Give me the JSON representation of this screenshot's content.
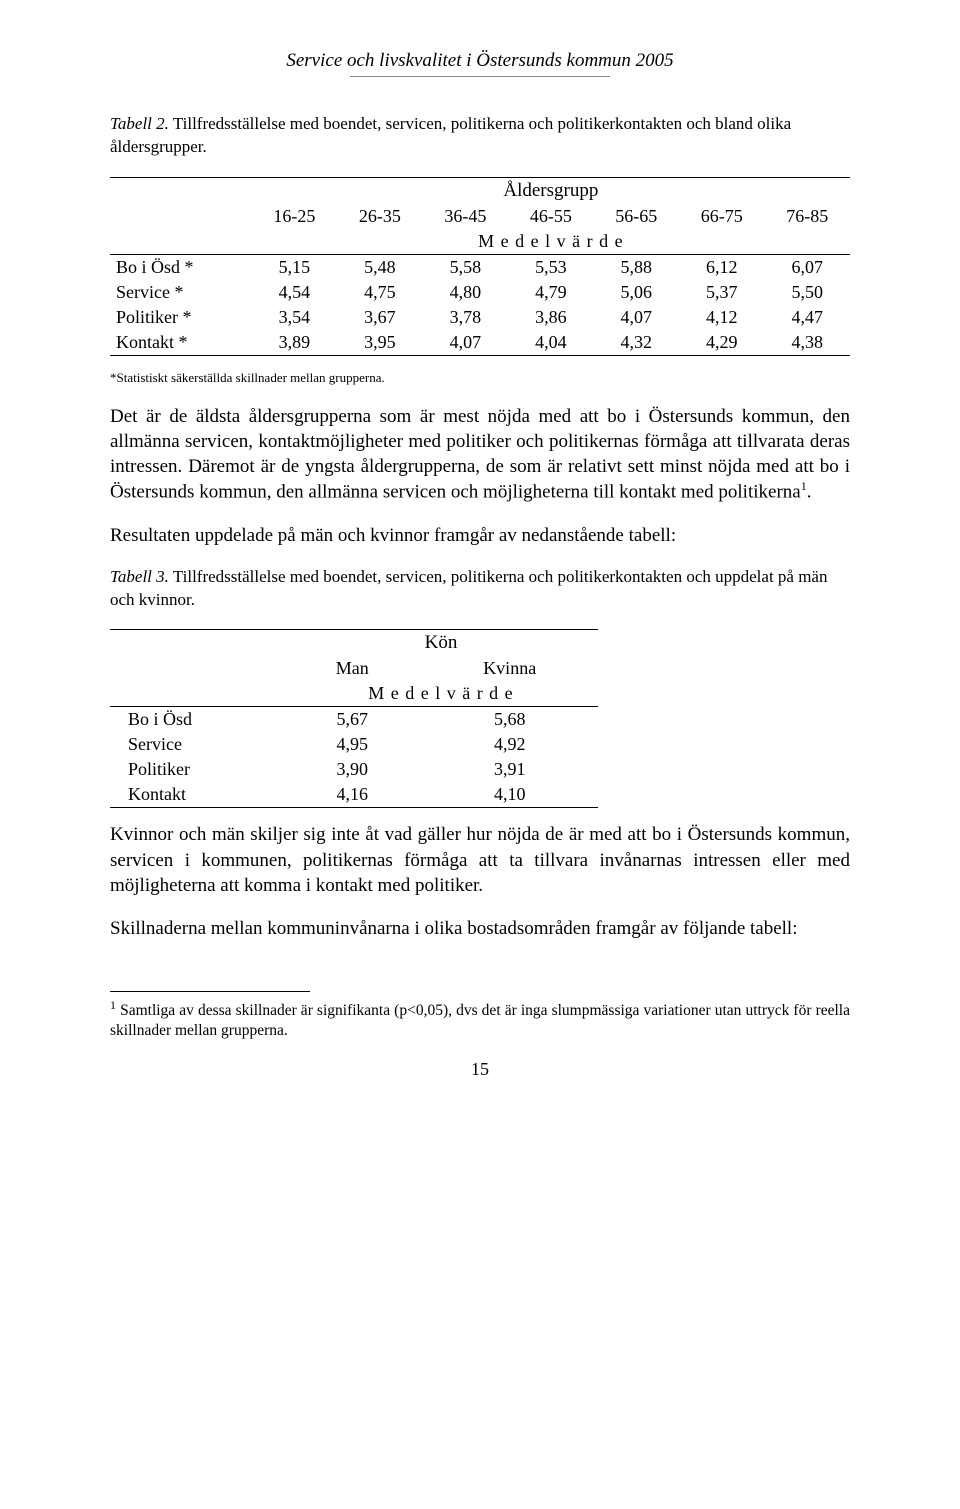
{
  "header": {
    "title": "Service och livskvalitet i Östersunds kommun 2005"
  },
  "table2": {
    "caption_prefix": "Tabell 2.",
    "caption_rest": " Tillfredsställelse med boendet, servicen,  politikerna och  politikerkontakten och bland olika åldersgrupper.",
    "super_header": "Åldersgrupp",
    "col_headers": [
      "16-25",
      "26-35",
      "36-45",
      "46-55",
      "56-65",
      "66-75",
      "76-85"
    ],
    "medel_label": "M e d e l v ä r d e",
    "rows": [
      {
        "label": "Bo i Ösd *",
        "vals": [
          "5,15",
          "5,48",
          "5,58",
          "5,53",
          "5,88",
          "6,12",
          "6,07"
        ]
      },
      {
        "label": "Service *",
        "vals": [
          "4,54",
          "4,75",
          "4,80",
          "4,79",
          "5,06",
          "5,37",
          "5,50"
        ]
      },
      {
        "label": "Politiker *",
        "vals": [
          "3,54",
          "3,67",
          "3,78",
          "3,86",
          "4,07",
          "4,12",
          "4,47"
        ]
      },
      {
        "label": "Kontakt *",
        "vals": [
          "3,89",
          "3,95",
          "4,07",
          "4,04",
          "4,32",
          "4,29",
          "4,38"
        ]
      }
    ],
    "footnote": "*Statistiskt säkerställda skillnader mellan grupperna."
  },
  "para1": "Det är de äldsta åldersgrupperna som är mest nöjda med att bo i Östersunds kommun, den allmänna servicen, kontaktmöjligheter med politiker och politikernas förmåga att tillvarata deras intressen. Däremot är de yngsta åldergrupperna, de som är relativt sett minst nöjda med att bo i Östersunds kommun, den allmänna servicen  och möjligheterna till kontakt med politikerna",
  "para1_sup": "1",
  "para1_tail": ".",
  "para2": "Resultaten uppdelade på män och kvinnor framgår av nedanstående tabell:",
  "table3": {
    "caption_prefix": "Tabell 3.",
    "caption_rest": " Tillfredsställelse med boendet, servicen,  politikerna och  politikerkontakten och uppdelat på män och kvinnor.",
    "super_header": "Kön",
    "col_headers": [
      "Man",
      "Kvinna"
    ],
    "medel_label": "M e d e l v ä r d e",
    "rows": [
      {
        "label": "Bo i Ösd",
        "vals": [
          "5,67",
          "5,68"
        ]
      },
      {
        "label": "Service",
        "vals": [
          "4,95",
          "4,92"
        ]
      },
      {
        "label": "Politiker",
        "vals": [
          "3,90",
          "3,91"
        ]
      },
      {
        "label": "Kontakt",
        "vals": [
          "4,16",
          "4,10"
        ]
      }
    ]
  },
  "para3": "Kvinnor och män skiljer sig inte åt vad gäller hur nöjda de är med att bo i Östersunds kommun, servicen i kommunen, politikernas förmåga att ta tillvara invånarnas intressen eller med möjligheterna att komma i kontakt med politiker.",
  "para4": "Skillnaderna mellan kommuninvånarna i olika bostadsområden framgår av följande tabell:",
  "footnote": {
    "marker": "1",
    "text": " Samtliga av dessa skillnader är signifikanta (p<0,05), dvs det är inga slumpmässiga variationer utan uttryck för reella skillnader mellan grupperna."
  },
  "pagenum": "15"
}
